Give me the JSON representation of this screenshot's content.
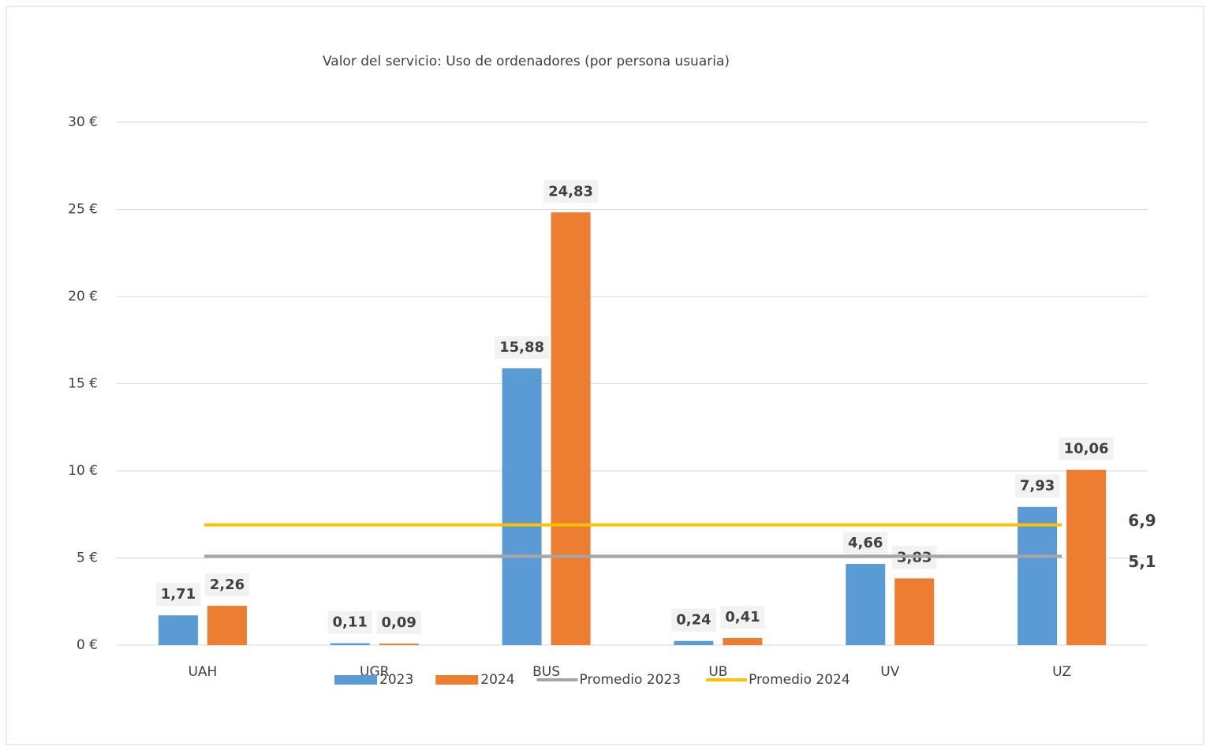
{
  "chart_data": {
    "type": "bar",
    "title": "Valor del servicio: Uso de ordenadores (por persona usuaria)",
    "categories": [
      "UAH",
      "UGR",
      "BUS",
      "UB",
      "UV",
      "UZ"
    ],
    "series": [
      {
        "name": "2023",
        "color": "#5b9bd5",
        "label_color": "#1f3864",
        "values": [
          1.71,
          0.11,
          15.88,
          0.24,
          4.66,
          7.93
        ],
        "value_labels": [
          "1,71",
          "0,11",
          "15,88",
          "0,24",
          "4,66",
          "7,93"
        ]
      },
      {
        "name": "2024",
        "color": "#ed7d31",
        "label_color": "#c00000",
        "values": [
          2.26,
          0.09,
          24.83,
          0.41,
          3.83,
          10.06
        ],
        "value_labels": [
          "2,26",
          "0,09",
          "24,83",
          "0,41",
          "3,83",
          "10,06"
        ]
      }
    ],
    "lines": [
      {
        "name": "Promedio 2023",
        "color": "#a5a5a5",
        "label_color": "#7f7f7f",
        "value": 5.1,
        "value_label": "5,1"
      },
      {
        "name": "Promedio 2024",
        "color": "#ffc000",
        "label_color": "#c00000",
        "value": 6.9,
        "value_label": "6,9"
      }
    ],
    "ylim": [
      0,
      30
    ],
    "yticks": [
      {
        "value": 0,
        "label": "0 €"
      },
      {
        "value": 5,
        "label": "5 €"
      },
      {
        "value": 10,
        "label": "10 €"
      },
      {
        "value": 15,
        "label": "15 €"
      },
      {
        "value": 20,
        "label": "20 €"
      },
      {
        "value": 25,
        "label": "25 €"
      },
      {
        "value": 30,
        "label": "30 €"
      }
    ],
    "grid": true
  }
}
